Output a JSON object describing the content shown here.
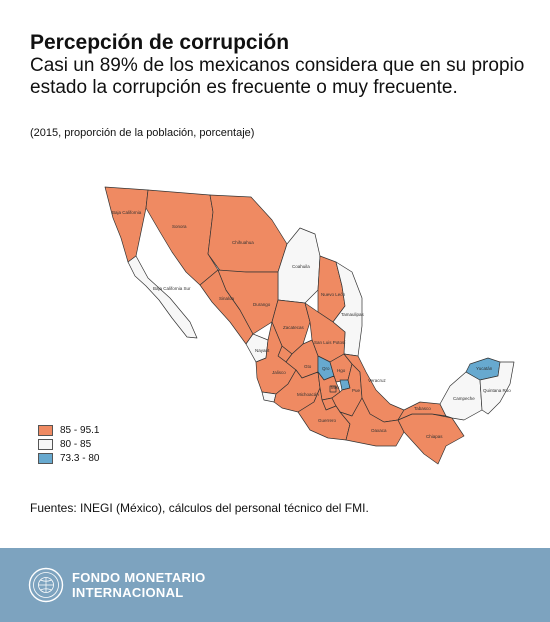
{
  "header": {
    "title": "Percepción de corrupción",
    "subtitle": "Casi un 89% de los mexicanos considera que en su propio estado la corrupción es frecuente o muy frecuente.",
    "note": "(2015, proporción de la población, porcentaje)"
  },
  "legend": {
    "items": [
      {
        "label": "85 - 95.1",
        "color": "#ef8a62"
      },
      {
        "label": "80 - 85",
        "color": "#f7f7f7"
      },
      {
        "label": "73.3 - 80",
        "color": "#67a9cf"
      }
    ]
  },
  "map": {
    "states": [
      {
        "name": "Baja California",
        "class": "85 - 95.1"
      },
      {
        "name": "Baja California Sur",
        "class": "80 - 85"
      },
      {
        "name": "Sonora",
        "class": "85 - 95.1"
      },
      {
        "name": "Chihuahua",
        "class": "85 - 95.1"
      },
      {
        "name": "Coahuila",
        "class": "80 - 85"
      },
      {
        "name": "Nuevo León",
        "class": "85 - 95.1"
      },
      {
        "name": "Tamaulipas",
        "class": "80 - 85"
      },
      {
        "name": "Sinaloa",
        "class": "85 - 95.1"
      },
      {
        "name": "Durango",
        "class": "85 - 95.1"
      },
      {
        "name": "Zacatecas",
        "class": "85 - 95.1"
      },
      {
        "name": "San Luis Potosí",
        "class": "85 - 95.1"
      },
      {
        "name": "Nayarit",
        "class": "80 - 85"
      },
      {
        "name": "Aguascalientes",
        "class": "85 - 95.1"
      },
      {
        "name": "Jalisco",
        "class": "85 - 95.1"
      },
      {
        "name": "Guanajuato",
        "class": "85 - 95.1"
      },
      {
        "name": "Querétaro",
        "class": "73.3 - 80"
      },
      {
        "name": "Hidalgo",
        "class": "85 - 95.1"
      },
      {
        "name": "Colima",
        "class": "80 - 85"
      },
      {
        "name": "Michoacán",
        "class": "85 - 95.1"
      },
      {
        "name": "México",
        "class": "85 - 95.1"
      },
      {
        "name": "DF",
        "class": "85 - 95.1"
      },
      {
        "name": "Morelos",
        "class": "85 - 95.1"
      },
      {
        "name": "Tlaxcala",
        "class": "73.3 - 80"
      },
      {
        "name": "Puebla",
        "class": "85 - 95.1"
      },
      {
        "name": "Veracruz",
        "class": "85 - 95.1"
      },
      {
        "name": "Guerrero",
        "class": "85 - 95.1"
      },
      {
        "name": "Oaxaca",
        "class": "85 - 95.1"
      },
      {
        "name": "Chiapas",
        "class": "85 - 95.1"
      },
      {
        "name": "Tabasco",
        "class": "85 - 95.1"
      },
      {
        "name": "Campeche",
        "class": "80 - 85"
      },
      {
        "name": "Yucatán",
        "class": "73.3 - 80"
      },
      {
        "name": "Quintana Roo",
        "class": "80 - 85"
      }
    ]
  },
  "source": "Fuentes: INEGI (México), cálculos del personal técnico del FMI.",
  "footer": {
    "brand_line1": "FONDO MONETARIO",
    "brand_line2": "INTERNACIONAL",
    "seal_icon": "imf-seal-icon"
  }
}
